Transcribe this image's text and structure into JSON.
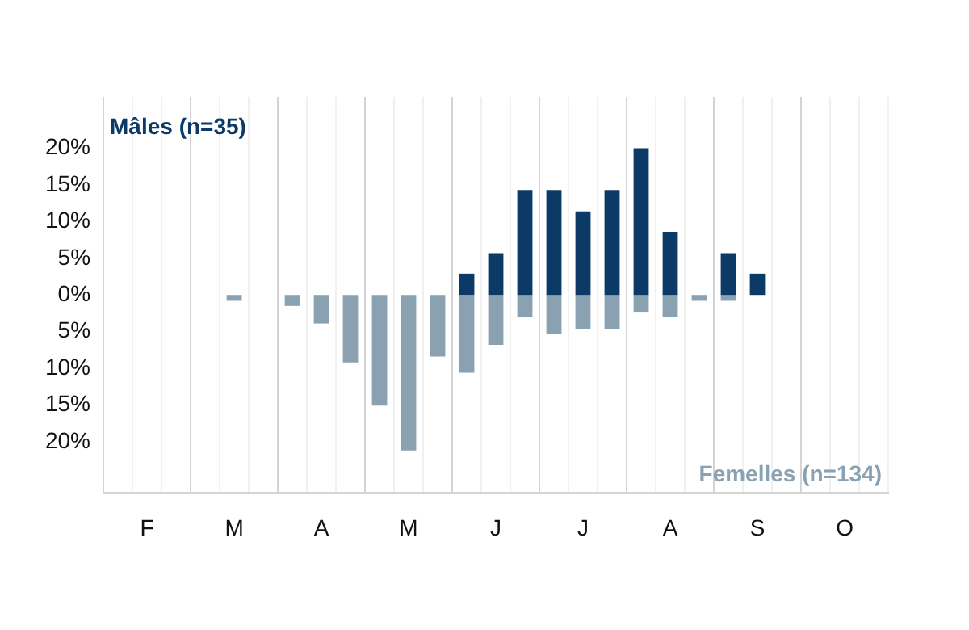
{
  "chart_data": {
    "type": "bar",
    "stacked": true,
    "grid": "x",
    "legend": false,
    "categories": [
      null,
      "F",
      null,
      null,
      "M",
      null,
      null,
      "A",
      null,
      null,
      "M",
      null,
      null,
      "J",
      null,
      null,
      "J",
      null,
      null,
      "A",
      null,
      null,
      "S",
      null,
      null,
      "O",
      null
    ],
    "series": [
      {
        "name": "Mâles (n=35)",
        "color": "#0b3a66",
        "values": [
          0,
          0,
          0,
          0,
          0,
          0,
          0,
          0,
          0,
          0,
          0,
          0,
          2.9,
          5.7,
          14.3,
          14.3,
          11.4,
          14.3,
          20,
          8.6,
          0,
          5.7,
          2.9,
          0,
          0,
          0,
          0
        ]
      },
      {
        "name": "Femelles (n=134)",
        "color": "#8aa1b1",
        "values": [
          0,
          0,
          0,
          0,
          -0.8,
          0,
          -1.5,
          -3.9,
          -9.2,
          -15.1,
          -21.2,
          -8.4,
          -10.6,
          -6.8,
          -3,
          -5.3,
          -4.6,
          -4.6,
          -2.3,
          -3,
          -0.8,
          -0.8,
          0,
          0,
          0,
          0,
          0
        ]
      }
    ],
    "ylim": [
      -27,
      27
    ],
    "yticks": [
      {
        "value": -20,
        "label": "20%"
      },
      {
        "value": -15,
        "label": "15%"
      },
      {
        "value": -10,
        "label": "10%"
      },
      {
        "value": -5,
        "label": "5%"
      },
      {
        "value": 0,
        "label": "0%"
      },
      {
        "value": 5,
        "label": "5%"
      },
      {
        "value": 10,
        "label": "10%"
      },
      {
        "value": 15,
        "label": "15%"
      },
      {
        "value": 20,
        "label": "20%"
      }
    ]
  }
}
